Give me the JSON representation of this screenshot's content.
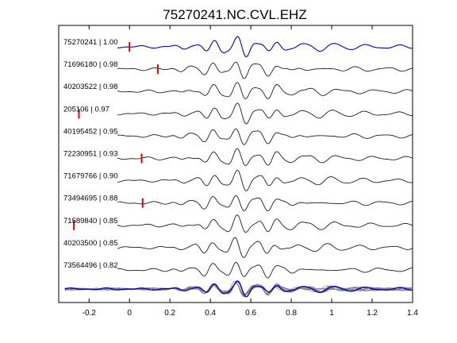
{
  "chart_data": {
    "type": "line",
    "title": "75270241.NC.CVL.EHZ",
    "xlabel": "",
    "ylabel": "",
    "xlim": [
      -0.35,
      1.4
    ],
    "xticks": [
      -0.2,
      0,
      0.2,
      0.4,
      0.6,
      0.8,
      1,
      1.2,
      1.4
    ],
    "xtick_labels": [
      "-0.2",
      "0",
      "0.2",
      "0.4",
      "0.6",
      "0.8",
      "1",
      "1.2",
      "1.4"
    ],
    "grid": false,
    "legend": "none",
    "trace_color_reference": "#0000cc",
    "trace_color_other": "#000000",
    "stack_color_other": "#808080",
    "pick_color": "#dd0000",
    "traces": [
      {
        "label": "75270241 | 1.00",
        "pick": 0.0,
        "reference": true
      },
      {
        "label": "71696180 | 0.98",
        "pick": 0.14
      },
      {
        "label": "40203522 | 0.98",
        "pick": null
      },
      {
        "label": "205106 | 0.97",
        "pick": -0.25
      },
      {
        "label": "40195452 | 0.95",
        "pick": null
      },
      {
        "label": "72230951 | 0.93",
        "pick": 0.06
      },
      {
        "label": "71679766 | 0.90",
        "pick": null
      },
      {
        "label": "73494695 | 0.88",
        "pick": 0.065
      },
      {
        "label": "71589840 | 0.85",
        "pick": -0.275
      },
      {
        "label": "40203500 | 0.85",
        "pick": null
      },
      {
        "label": "73564496 | 0.82",
        "pick": null
      }
    ]
  }
}
